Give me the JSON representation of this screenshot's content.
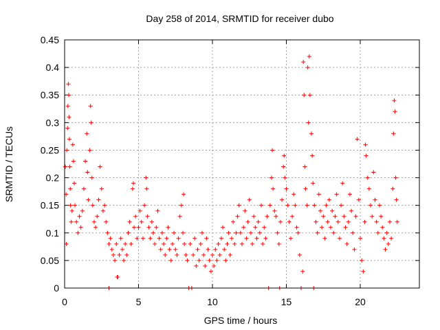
{
  "chart_data": {
    "type": "scatter",
    "title": "Day 258 of 2014, SRMTID for receiver dubo",
    "xlabel": "GPS time / hours",
    "ylabel": "SRMTID / TECUs",
    "xlim": [
      0,
      24
    ],
    "ylim": [
      0,
      0.45
    ],
    "xticks": [
      "0",
      "5",
      "10",
      "15",
      "20"
    ],
    "yticks": [
      "0",
      "0.05",
      "0.1",
      "0.15",
      "0.2",
      "0.25",
      "0.3",
      "0.35",
      "0.4",
      "0.45"
    ],
    "grid": true,
    "marker": "plus",
    "series_color": "#ff0000",
    "series": [
      {
        "name": "dubo",
        "points": [
          [
            0.05,
            0.22
          ],
          [
            0.1,
            0.17
          ],
          [
            0.12,
            0.08
          ],
          [
            0.15,
            0.25
          ],
          [
            0.2,
            0.29
          ],
          [
            0.22,
            0.33
          ],
          [
            0.25,
            0.37
          ],
          [
            0.28,
            0.35
          ],
          [
            0.3,
            0.31
          ],
          [
            0.32,
            0.27
          ],
          [
            0.35,
            0.22
          ],
          [
            0.38,
            0.18
          ],
          [
            0.4,
            0.15
          ],
          [
            0.45,
            0.12
          ],
          [
            0.5,
            0.14
          ],
          [
            0.55,
            0.26
          ],
          [
            0.6,
            0.23
          ],
          [
            0.65,
            0.19
          ],
          [
            0.7,
            0.15
          ],
          [
            0.8,
            0.12
          ],
          [
            0.9,
            0.1
          ],
          [
            1.0,
            0.13
          ],
          [
            1.1,
            0.11
          ],
          [
            1.2,
            0.14
          ],
          [
            1.3,
            0.18
          ],
          [
            1.4,
            0.23
          ],
          [
            1.5,
            0.28
          ],
          [
            1.55,
            0.21
          ],
          [
            1.6,
            0.16
          ],
          [
            1.7,
            0.25
          ],
          [
            1.75,
            0.33
          ],
          [
            1.8,
            0.3
          ],
          [
            1.85,
            0.2
          ],
          [
            1.9,
            0.15
          ],
          [
            2.0,
            0.12
          ],
          [
            2.1,
            0.11
          ],
          [
            2.2,
            0.13
          ],
          [
            2.3,
            0.16
          ],
          [
            2.4,
            0.22
          ],
          [
            2.5,
            0.18
          ],
          [
            2.6,
            0.14
          ],
          [
            2.7,
            0.15
          ],
          [
            2.8,
            0.12
          ],
          [
            2.9,
            0.1
          ],
          [
            3.0,
            0.08
          ],
          [
            3.0,
            0.0
          ],
          [
            3.1,
            0.09
          ],
          [
            3.2,
            0.07
          ],
          [
            3.3,
            0.06
          ],
          [
            3.4,
            0.05
          ],
          [
            3.5,
            0.08
          ],
          [
            3.55,
            0.02
          ],
          [
            3.6,
            0.02
          ],
          [
            3.7,
            0.06
          ],
          [
            3.8,
            0.09
          ],
          [
            3.9,
            0.07
          ],
          [
            4.0,
            0.05
          ],
          [
            4.1,
            0.08
          ],
          [
            4.2,
            0.06
          ],
          [
            4.3,
            0.1
          ],
          [
            4.4,
            0.12
          ],
          [
            4.5,
            0.08
          ],
          [
            4.6,
            0.18
          ],
          [
            4.65,
            0.19
          ],
          [
            4.7,
            0.11
          ],
          [
            4.8,
            0.13
          ],
          [
            4.9,
            0.09
          ],
          [
            5.0,
            0.11
          ],
          [
            5.1,
            0.14
          ],
          [
            5.2,
            0.12
          ],
          [
            5.3,
            0.09
          ],
          [
            5.4,
            0.15
          ],
          [
            5.5,
            0.2
          ],
          [
            5.55,
            0.18
          ],
          [
            5.6,
            0.13
          ],
          [
            5.7,
            0.11
          ],
          [
            5.8,
            0.09
          ],
          [
            5.9,
            0.12
          ],
          [
            6.0,
            0.1
          ],
          [
            6.1,
            0.08
          ],
          [
            6.2,
            0.11
          ],
          [
            6.3,
            0.14
          ],
          [
            6.4,
            0.09
          ],
          [
            6.5,
            0.07
          ],
          [
            6.6,
            0.1
          ],
          [
            6.7,
            0.08
          ],
          [
            6.8,
            0.06
          ],
          [
            6.9,
            0.09
          ],
          [
            7.0,
            0.11
          ],
          [
            7.1,
            0.07
          ],
          [
            7.2,
            0.05
          ],
          [
            7.3,
            0.08
          ],
          [
            7.4,
            0.1
          ],
          [
            7.5,
            0.07
          ],
          [
            7.6,
            0.06
          ],
          [
            7.7,
            0.09
          ],
          [
            7.8,
            0.13
          ],
          [
            7.9,
            0.15
          ],
          [
            8.0,
            0.1
          ],
          [
            8.05,
            0.17
          ],
          [
            8.1,
            0.08
          ],
          [
            8.2,
            0.06
          ],
          [
            8.3,
            0.05
          ],
          [
            8.4,
            0.0
          ],
          [
            8.5,
            0.08
          ],
          [
            8.6,
            0.0
          ],
          [
            8.7,
            0.06
          ],
          [
            8.8,
            0.09
          ],
          [
            8.9,
            0.04
          ],
          [
            9.0,
            0.07
          ],
          [
            9.1,
            0.05
          ],
          [
            9.2,
            0.08
          ],
          [
            9.3,
            0.1
          ],
          [
            9.4,
            0.06
          ],
          [
            9.5,
            0.04
          ],
          [
            9.6,
            0.09
          ],
          [
            9.7,
            0.07
          ],
          [
            9.8,
            0.05
          ],
          [
            9.9,
            0.03
          ],
          [
            10.0,
            0.06
          ],
          [
            10.1,
            0.04
          ],
          [
            10.2,
            0.07
          ],
          [
            10.3,
            0.05
          ],
          [
            10.4,
            0.08
          ],
          [
            10.5,
            0.06
          ],
          [
            10.6,
            0.09
          ],
          [
            10.7,
            0.11
          ],
          [
            10.8,
            0.07
          ],
          [
            10.9,
            0.05
          ],
          [
            11.0,
            0.08
          ],
          [
            11.1,
            0.1
          ],
          [
            11.2,
            0.06
          ],
          [
            11.3,
            0.09
          ],
          [
            11.4,
            0.12
          ],
          [
            11.5,
            0.08
          ],
          [
            11.6,
            0.1
          ],
          [
            11.7,
            0.13
          ],
          [
            11.8,
            0.15
          ],
          [
            11.9,
            0.1
          ],
          [
            12.0,
            0.08
          ],
          [
            12.1,
            0.11
          ],
          [
            12.2,
            0.14
          ],
          [
            12.3,
            0.09
          ],
          [
            12.4,
            0.12
          ],
          [
            12.5,
            0.16
          ],
          [
            12.6,
            0.1
          ],
          [
            12.7,
            0.08
          ],
          [
            12.8,
            0.13
          ],
          [
            12.9,
            0.11
          ],
          [
            13.0,
            0.09
          ],
          [
            13.1,
            0.12
          ],
          [
            13.2,
            0.1
          ],
          [
            13.3,
            0.15
          ],
          [
            13.4,
            0.08
          ],
          [
            13.5,
            0.11
          ],
          [
            13.6,
            0.09
          ],
          [
            13.7,
            0.13
          ],
          [
            13.8,
            0.0
          ],
          [
            13.9,
            0.15
          ],
          [
            14.0,
            0.2
          ],
          [
            14.05,
            0.25
          ],
          [
            14.1,
            0.18
          ],
          [
            14.2,
            0.14
          ],
          [
            14.3,
            0.13
          ],
          [
            14.4,
            0.1
          ],
          [
            14.5,
            0.08
          ],
          [
            14.55,
            0.0
          ],
          [
            14.6,
            0.12
          ],
          [
            14.7,
            0.16
          ],
          [
            14.8,
            0.22
          ],
          [
            14.85,
            0.24
          ],
          [
            14.9,
            0.2
          ],
          [
            15.0,
            0.18
          ],
          [
            15.1,
            0.15
          ],
          [
            15.2,
            0.12
          ],
          [
            15.3,
            0.09
          ],
          [
            15.4,
            0.13
          ],
          [
            15.5,
            0.17
          ],
          [
            15.6,
            0.15
          ],
          [
            15.7,
            0.11
          ],
          [
            15.8,
            0.1
          ],
          [
            15.9,
            0.06
          ],
          [
            16.0,
            0.0
          ],
          [
            16.1,
            0.03
          ],
          [
            16.15,
            0.41
          ],
          [
            16.2,
            0.35
          ],
          [
            16.25,
            0.22
          ],
          [
            16.3,
            0.18
          ],
          [
            16.4,
            0.15
          ],
          [
            16.45,
            0.4
          ],
          [
            16.5,
            0.3
          ],
          [
            16.55,
            0.42
          ],
          [
            16.6,
            0.35
          ],
          [
            16.7,
            0.28
          ],
          [
            16.75,
            0.24
          ],
          [
            16.8,
            0.19
          ],
          [
            16.85,
            0.0
          ],
          [
            16.9,
            0.15
          ],
          [
            17.0,
            0.12
          ],
          [
            17.1,
            0.1
          ],
          [
            17.2,
            0.17
          ],
          [
            17.3,
            0.14
          ],
          [
            17.4,
            0.11
          ],
          [
            17.5,
            0.13
          ],
          [
            17.6,
            0.09
          ],
          [
            17.7,
            0.15
          ],
          [
            17.8,
            0.12
          ],
          [
            17.9,
            0.16
          ],
          [
            18.0,
            0.11
          ],
          [
            18.1,
            0.14
          ],
          [
            18.2,
            0.1
          ],
          [
            18.3,
            0.13
          ],
          [
            18.4,
            0.17
          ],
          [
            18.5,
            0.12
          ],
          [
            18.6,
            0.09
          ],
          [
            18.7,
            0.15
          ],
          [
            18.8,
            0.19
          ],
          [
            18.9,
            0.13
          ],
          [
            19.0,
            0.11
          ],
          [
            19.1,
            0.08
          ],
          [
            19.2,
            0.12
          ],
          [
            19.3,
            0.17
          ],
          [
            19.4,
            0.14
          ],
          [
            19.5,
            0.1
          ],
          [
            19.6,
            0.07
          ],
          [
            19.7,
            0.13
          ],
          [
            19.8,
            0.27
          ],
          [
            19.9,
            0.16
          ],
          [
            20.0,
            0.09
          ],
          [
            20.1,
            0.05
          ],
          [
            20.2,
            0.03
          ],
          [
            20.3,
            0.12
          ],
          [
            20.35,
            0.26
          ],
          [
            20.4,
            0.24
          ],
          [
            20.5,
            0.2
          ],
          [
            20.6,
            0.18
          ],
          [
            20.7,
            0.15
          ],
          [
            20.8,
            0.13
          ],
          [
            20.9,
            0.21
          ],
          [
            21.0,
            0.16
          ],
          [
            21.1,
            0.12
          ],
          [
            21.2,
            0.1
          ],
          [
            21.3,
            0.15
          ],
          [
            21.4,
            0.13
          ],
          [
            21.5,
            0.11
          ],
          [
            21.6,
            0.09
          ],
          [
            21.7,
            0.07
          ],
          [
            21.8,
            0.1
          ],
          [
            21.9,
            0.08
          ],
          [
            22.0,
            0.12
          ],
          [
            22.1,
            0.09
          ],
          [
            22.2,
            0.18
          ],
          [
            22.25,
            0.28
          ],
          [
            22.3,
            0.34
          ],
          [
            22.35,
            0.32
          ],
          [
            22.4,
            0.2
          ],
          [
            22.45,
            0.16
          ],
          [
            22.5,
            0.12
          ]
        ]
      }
    ]
  }
}
